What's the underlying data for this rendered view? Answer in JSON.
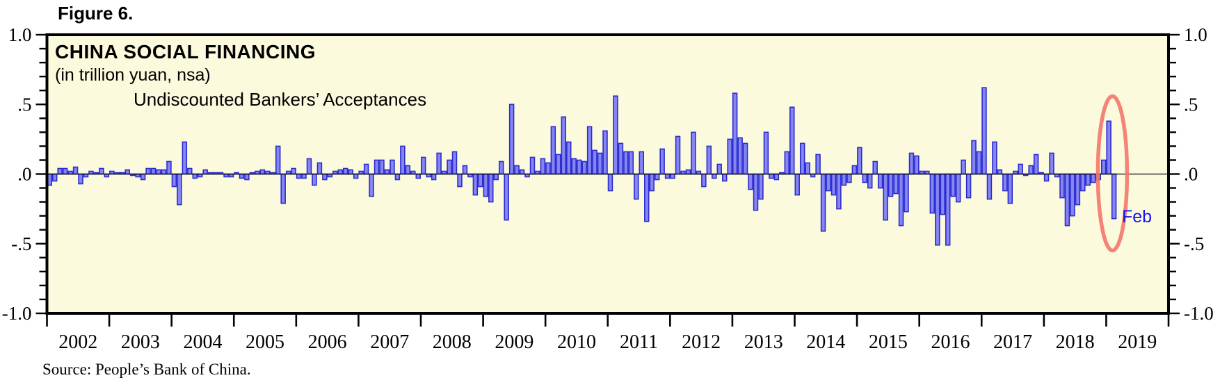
{
  "figure_label": "Figure 6.",
  "chart": {
    "title": "CHINA SOCIAL FINANCING",
    "subtitle": "(in trillion yuan, nsa)",
    "series_label": "Undiscounted Bankers’ Acceptances",
    "y_axis": {
      "tick_labels_left": [
        "1.0",
        ".5",
        ".0",
        "-.5",
        "-1.0"
      ],
      "tick_labels_right": [
        "1.0",
        ".5",
        ".0",
        "-.5",
        "-1.0"
      ],
      "tick_values": [
        1.0,
        0.5,
        0.0,
        -0.5,
        -1.0
      ],
      "minor_tick_step": 0.1,
      "range": [
        -1.0,
        1.0
      ]
    },
    "x_axis": {
      "year_labels": [
        "2002",
        "2003",
        "2004",
        "2005",
        "2006",
        "2007",
        "2008",
        "2009",
        "2010",
        "2011",
        "2012",
        "2013",
        "2014",
        "2015",
        "2016",
        "2017",
        "2018",
        "2019"
      ]
    },
    "annotation": {
      "label": "Feb",
      "color": "#1414f0"
    },
    "highlight": {
      "shape": "ellipse",
      "color": "#f4756b",
      "months_circled": [
        "2019-01",
        "2019-02"
      ]
    },
    "colors": {
      "bar_fill": "#8586f2",
      "bar_border": "#2b2bd0",
      "plot_background": "#fcfadd",
      "frame": "#000000"
    },
    "chart_data": {
      "type": "bar",
      "frequency": "monthly",
      "x_start": "2002-01",
      "x_end": "2019-02",
      "x_axis_extends_to": "2019-12",
      "title": "CHINA SOCIAL FINANCING (in trillion yuan, nsa)",
      "series_name": "Undiscounted Bankers’ Acceptances",
      "ylabel": "trillion yuan",
      "ylim": [
        -1.0,
        1.0
      ],
      "grid": false,
      "values": [
        -0.08,
        -0.05,
        0.04,
        0.04,
        0.02,
        0.05,
        -0.07,
        -0.02,
        0.02,
        0.01,
        0.04,
        -0.02,
        0.02,
        0.01,
        0.01,
        0.03,
        -0.01,
        -0.02,
        -0.04,
        0.04,
        0.04,
        0.03,
        0.03,
        0.09,
        -0.09,
        -0.22,
        0.23,
        0.04,
        -0.03,
        -0.02,
        0.03,
        0.01,
        0.01,
        0.01,
        -0.02,
        -0.02,
        0.01,
        -0.03,
        -0.04,
        0.01,
        0.02,
        0.03,
        0.02,
        0.01,
        0.2,
        -0.21,
        0.02,
        0.04,
        -0.03,
        -0.03,
        0.11,
        -0.08,
        0.08,
        -0.04,
        -0.02,
        0.02,
        0.03,
        0.04,
        0.03,
        -0.03,
        0.02,
        0.07,
        -0.16,
        0.1,
        0.1,
        0.03,
        0.1,
        -0.04,
        0.2,
        0.06,
        0.02,
        -0.03,
        0.12,
        -0.02,
        -0.04,
        0.15,
        0.02,
        0.1,
        0.16,
        -0.09,
        0.06,
        -0.02,
        -0.15,
        -0.09,
        -0.16,
        -0.2,
        -0.04,
        0.09,
        -0.33,
        0.5,
        0.06,
        0.03,
        -0.02,
        0.12,
        0.02,
        0.11,
        0.08,
        0.34,
        0.14,
        0.41,
        0.23,
        0.11,
        0.1,
        0.09,
        0.34,
        0.17,
        0.15,
        0.31,
        -0.12,
        0.56,
        0.22,
        0.16,
        0.16,
        -0.18,
        0.16,
        -0.34,
        -0.12,
        -0.04,
        0.18,
        -0.03,
        -0.03,
        0.27,
        0.02,
        0.03,
        0.3,
        0.02,
        -0.09,
        0.2,
        -0.03,
        0.07,
        -0.05,
        0.25,
        0.58,
        0.26,
        0.22,
        -0.11,
        -0.26,
        -0.18,
        0.3,
        -0.03,
        -0.04,
        0.01,
        0.16,
        0.48,
        -0.15,
        0.22,
        0.08,
        -0.02,
        0.14,
        -0.41,
        -0.12,
        -0.15,
        -0.25,
        -0.08,
        -0.06,
        0.06,
        0.19,
        -0.06,
        -0.1,
        0.09,
        -0.1,
        -0.33,
        -0.16,
        -0.14,
        -0.37,
        -0.27,
        0.15,
        0.13,
        0.02,
        0.02,
        -0.28,
        -0.51,
        -0.29,
        -0.51,
        -0.16,
        -0.2,
        0.1,
        -0.17,
        0.24,
        0.16,
        0.62,
        -0.18,
        0.23,
        0.03,
        -0.12,
        -0.21,
        0.02,
        0.07,
        -0.01,
        0.06,
        0.14,
        0.01,
        -0.05,
        0.15,
        -0.02,
        -0.17,
        -0.37,
        -0.3,
        -0.22,
        -0.12,
        -0.08,
        -0.06,
        -0.04,
        0.1,
        0.38,
        -0.32
      ]
    }
  },
  "source": "Source: People’s Bank of China."
}
